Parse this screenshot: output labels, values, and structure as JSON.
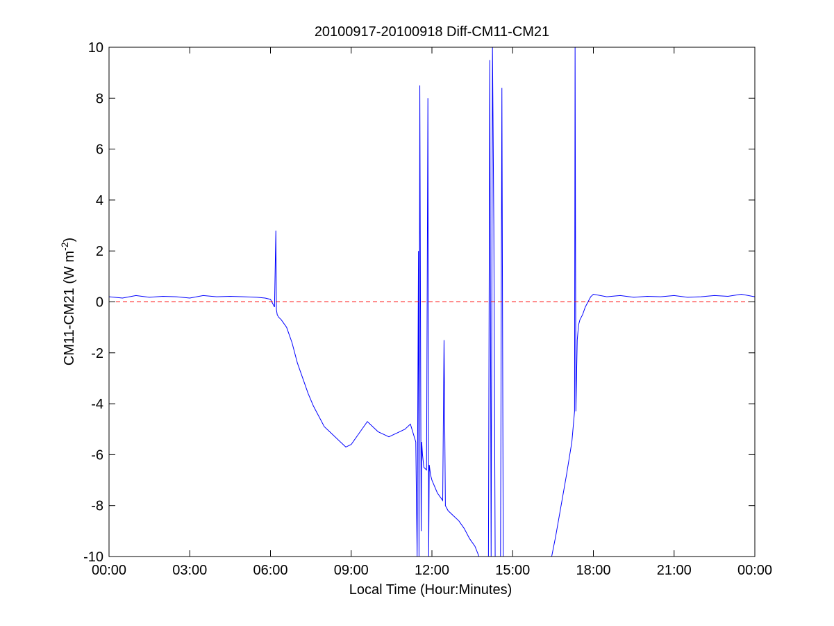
{
  "chart_data": {
    "type": "line",
    "title": "20100917-20100918 Diff-CM11-CM21",
    "xlabel": "Local Time (Hour:Minutes)",
    "ylabel_base": "CM11-CM21 (W m",
    "ylabel_sup": "-2",
    "ylabel_close": ")",
    "x_unit": "hours",
    "xlim": [
      0,
      24
    ],
    "ylim": [
      -10,
      10
    ],
    "xtick_values": [
      0,
      3,
      6,
      9,
      12,
      15,
      18,
      21,
      24
    ],
    "xtick_labels": [
      "00:00",
      "03:00",
      "06:00",
      "09:00",
      "12:00",
      "15:00",
      "18:00",
      "21:00",
      "00:00"
    ],
    "ytick_values": [
      -10,
      -8,
      -6,
      -4,
      -2,
      0,
      2,
      4,
      6,
      8,
      10
    ],
    "ytick_labels": [
      "-10",
      "-8",
      "-6",
      "-4",
      "-2",
      "0",
      "2",
      "4",
      "6",
      "8",
      "10"
    ],
    "grid": false,
    "series": [
      {
        "color": "#0000ff",
        "x": [
          0.0,
          0.5,
          1.0,
          1.5,
          2.0,
          2.5,
          3.0,
          3.5,
          4.0,
          4.5,
          5.0,
          5.5,
          5.8,
          6.0,
          6.15,
          6.2,
          6.22,
          6.25,
          6.3,
          6.4,
          6.6,
          6.8,
          7.0,
          7.2,
          7.4,
          7.6,
          7.8,
          8.0,
          8.2,
          8.4,
          8.6,
          8.8,
          9.0,
          9.2,
          9.4,
          9.6,
          9.8,
          10.0,
          10.2,
          10.4,
          10.6,
          10.8,
          11.0,
          11.2,
          11.4,
          11.45,
          11.5,
          11.52,
          11.55,
          11.6,
          11.62,
          11.65,
          11.7,
          11.8,
          11.85,
          11.88,
          11.9,
          11.95,
          12.0,
          12.2,
          12.4,
          12.45,
          12.5,
          12.6,
          12.8,
          13.0,
          13.2,
          13.4,
          13.6,
          13.75,
          14.1,
          14.15,
          14.2,
          14.25,
          14.3,
          14.35,
          14.4,
          14.55,
          14.6,
          14.65,
          14.7,
          14.75,
          16.45,
          16.6,
          16.8,
          17.0,
          17.2,
          17.3,
          17.32,
          17.35,
          17.4,
          17.45,
          17.5,
          17.6,
          17.7,
          17.8,
          17.9,
          18.0,
          18.5,
          19.0,
          19.5,
          20.0,
          20.5,
          21.0,
          21.5,
          22.0,
          22.5,
          23.0,
          23.5,
          24.0
        ],
        "y": [
          0.2,
          0.15,
          0.25,
          0.18,
          0.22,
          0.2,
          0.15,
          0.25,
          0.2,
          0.22,
          0.2,
          0.18,
          0.15,
          0.1,
          -0.2,
          2.8,
          -0.3,
          -0.5,
          -0.6,
          -0.7,
          -1.0,
          -1.6,
          -2.4,
          -3.0,
          -3.6,
          -4.1,
          -4.5,
          -4.9,
          -5.1,
          -5.3,
          -5.5,
          -5.7,
          -5.6,
          -5.3,
          -5.0,
          -4.7,
          -4.9,
          -5.1,
          -5.2,
          -5.3,
          -5.2,
          -5.1,
          -5.0,
          -4.8,
          -5.5,
          -10.0,
          2.0,
          -10.0,
          8.5,
          -9.0,
          -5.5,
          -6.0,
          -6.5,
          -6.6,
          8.0,
          -10.0,
          -6.4,
          -6.8,
          -7.0,
          -7.5,
          -7.8,
          -1.5,
          -8.0,
          -8.2,
          -8.4,
          -8.6,
          -8.9,
          -9.3,
          -9.6,
          -10.0,
          -10.0,
          9.5,
          -10.0,
          10.0,
          3.0,
          -10.0,
          -10.0,
          -10.0,
          8.4,
          -10.0,
          -10.0,
          -10.0,
          -10.0,
          -9.2,
          -8.0,
          -6.8,
          -5.5,
          -4.3,
          10.0,
          -4.3,
          -1.5,
          -0.9,
          -0.7,
          -0.5,
          -0.2,
          0.0,
          0.2,
          0.3,
          0.2,
          0.25,
          0.18,
          0.22,
          0.2,
          0.25,
          0.18,
          0.2,
          0.25,
          0.22,
          0.3,
          0.2
        ]
      },
      {
        "color": "#ff0000",
        "style": "dashed",
        "x": [
          0,
          24
        ],
        "y": [
          0,
          0
        ]
      }
    ]
  }
}
